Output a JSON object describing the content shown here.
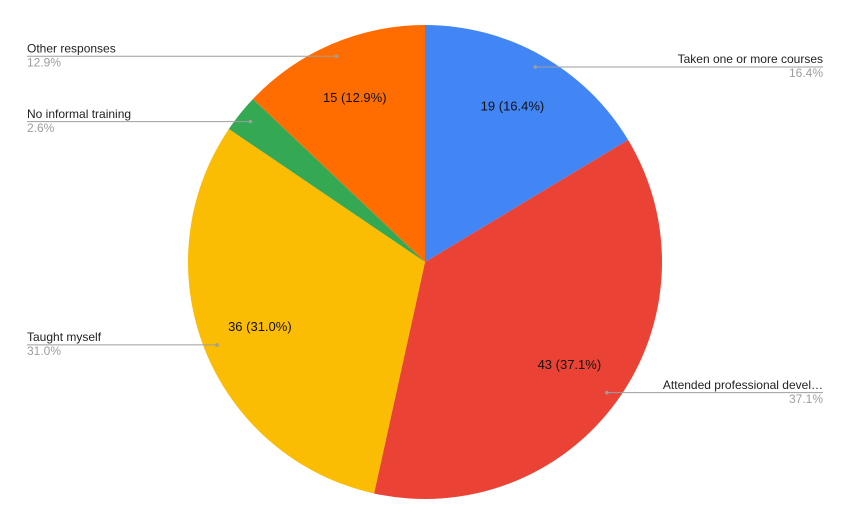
{
  "chart_data": {
    "type": "pie",
    "categories": [
      "Taken one or more courses",
      "Attended professional devel…",
      "Taught myself",
      "No informal training",
      "Other responses"
    ],
    "values": [
      19,
      43,
      36,
      3,
      15
    ],
    "value_labels": [
      "19 (16.4%)",
      "43 (37.1%)",
      "36 (31.0%)",
      null,
      "15 (12.9%)"
    ],
    "percent_labels": [
      "16.4%",
      "37.1%",
      "31.0%",
      "2.6%",
      "12.9%"
    ],
    "colors": [
      "#4285f4",
      "#ea4335",
      "#fbbc04",
      "#34a853",
      "#ff6d01"
    ]
  }
}
